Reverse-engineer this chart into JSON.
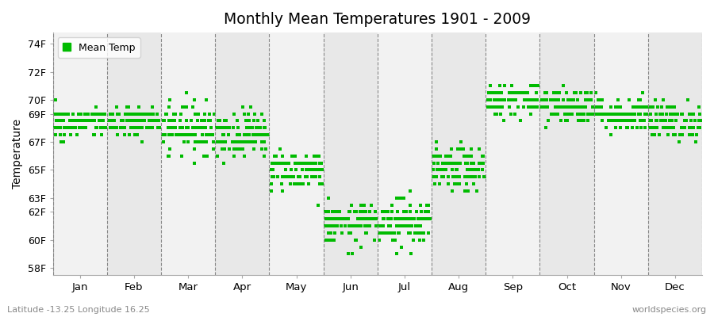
{
  "title": "Monthly Mean Temperatures 1901 - 2009",
  "ylabel": "Temperature",
  "xlabel_left": "Latitude -13.25 Longitude 16.25",
  "xlabel_right": "worldspecies.org",
  "legend_label": "Mean Temp",
  "dot_color": "#00bb00",
  "bg_color": "#f2f2f2",
  "stripe_light": "#f2f2f2",
  "stripe_dark": "#e8e8e8",
  "months": [
    "Jan",
    "Feb",
    "Mar",
    "Apr",
    "May",
    "Jun",
    "Jul",
    "Aug",
    "Sep",
    "Oct",
    "Nov",
    "Dec"
  ],
  "month_means": [
    68.3,
    68.4,
    68.0,
    67.6,
    65.0,
    61.1,
    61.3,
    65.0,
    70.0,
    69.6,
    69.0,
    68.5
  ],
  "month_stds": [
    0.55,
    0.55,
    0.85,
    0.8,
    0.7,
    0.7,
    0.85,
    0.75,
    0.6,
    0.7,
    0.6,
    0.65
  ],
  "n_years": 109,
  "random_seed": 42,
  "dot_size": 12,
  "figsize": [
    9.0,
    4.0
  ],
  "dpi": 100,
  "ylim_low": 57.5,
  "ylim_high": 74.8,
  "ytick_vals": [
    58,
    60,
    62,
    63,
    65,
    67,
    69,
    70,
    72,
    74
  ],
  "ytick_labels": [
    "58F",
    "60F",
    "62F",
    "63F",
    "65F",
    "67F",
    "69F",
    "70F",
    "72F",
    "74F"
  ]
}
